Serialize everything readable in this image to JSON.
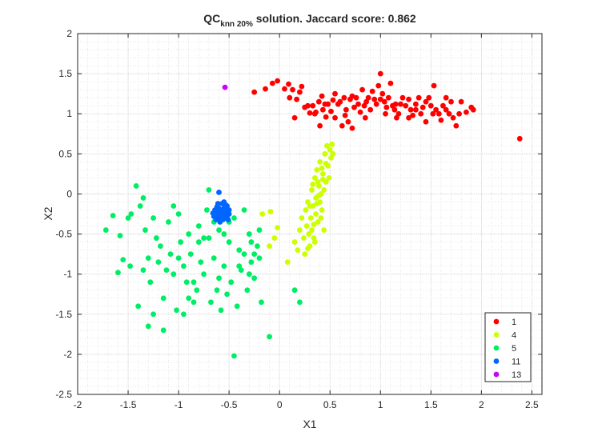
{
  "chart_data": {
    "type": "scatter",
    "title": {
      "main": "QC",
      "subscript": "knn 20%",
      "rest": " solution. Jaccard score: 0.862"
    },
    "xlabel": "X1",
    "ylabel": "X2",
    "xlim": [
      -2,
      2.6
    ],
    "ylim": [
      -2.5,
      2
    ],
    "xticks": [
      -2,
      -1.5,
      -1,
      -0.5,
      0,
      0.5,
      1,
      1.5,
      2,
      2.5
    ],
    "xtick_labels": [
      "-2",
      "-1.5",
      "-1",
      "-0.5",
      "0",
      "0.5",
      "1",
      "1.5",
      "2",
      "2.5"
    ],
    "yticks": [
      -2.5,
      -2,
      -1.5,
      -1,
      -0.5,
      0,
      0.5,
      1,
      1.5,
      2
    ],
    "ytick_labels": [
      "-2.5",
      "-2",
      "-1.5",
      "-1",
      "-0.5",
      "0",
      "0.5",
      "1",
      "1.5",
      "2"
    ],
    "grid": true,
    "minor_grid": true,
    "legend_position": "bottom-right",
    "series": [
      {
        "name": "1",
        "color": "#ff0000",
        "points": [
          [
            -0.25,
            1.27
          ],
          [
            -0.14,
            1.31
          ],
          [
            -0.07,
            1.38
          ],
          [
            -0.02,
            1.41
          ],
          [
            0.05,
            1.31
          ],
          [
            0.09,
            1.37
          ],
          [
            0.13,
            1.3
          ],
          [
            0.17,
            1.18
          ],
          [
            0.2,
            1.27
          ],
          [
            0.1,
            1.2
          ],
          [
            0.22,
            1.34
          ],
          [
            0.25,
            1.08
          ],
          [
            0.3,
            1.01
          ],
          [
            0.33,
            1.1
          ],
          [
            0.36,
            1.02
          ],
          [
            0.39,
            1.15
          ],
          [
            0.42,
            1.22
          ],
          [
            0.43,
            1.05
          ],
          [
            0.46,
            0.96
          ],
          [
            0.48,
            1.12
          ],
          [
            0.51,
            1.03
          ],
          [
            0.53,
            1.17
          ],
          [
            0.55,
            1.25
          ],
          [
            0.58,
            1.12
          ],
          [
            0.6,
            1.15
          ],
          [
            0.62,
            0.85
          ],
          [
            0.64,
            1.2
          ],
          [
            0.66,
            1.05
          ],
          [
            0.68,
            0.9
          ],
          [
            0.7,
            1.18
          ],
          [
            0.72,
            1.22
          ],
          [
            0.74,
            1.08
          ],
          [
            0.76,
            1.2
          ],
          [
            0.78,
            1.12
          ],
          [
            0.8,
            1.02
          ],
          [
            0.82,
            1.3
          ],
          [
            0.84,
            1.1
          ],
          [
            0.86,
            1.15
          ],
          [
            0.88,
            1.2
          ],
          [
            0.9,
            1.05
          ],
          [
            0.92,
            1.28
          ],
          [
            0.94,
            1.18
          ],
          [
            0.96,
            1.12
          ],
          [
            0.98,
            1.35
          ],
          [
            1.0,
            1.5
          ],
          [
            1.02,
            1.25
          ],
          [
            1.04,
            1.15
          ],
          [
            1.06,
            1.08
          ],
          [
            1.08,
            1.2
          ],
          [
            1.1,
            1.38
          ],
          [
            1.12,
            1.1
          ],
          [
            1.14,
            1.05
          ],
          [
            1.16,
            0.95
          ],
          [
            1.18,
            1.0
          ],
          [
            1.2,
            1.12
          ],
          [
            1.22,
            1.2
          ],
          [
            1.25,
            1.1
          ],
          [
            1.28,
            1.18
          ],
          [
            1.3,
            1.05
          ],
          [
            1.32,
            0.98
          ],
          [
            1.35,
            1.12
          ],
          [
            1.38,
            1.2
          ],
          [
            1.4,
            1.0
          ],
          [
            1.42,
            1.08
          ],
          [
            1.45,
            1.15
          ],
          [
            1.48,
            1.2
          ],
          [
            1.5,
            1.1
          ],
          [
            1.52,
            1.0
          ],
          [
            1.55,
            1.05
          ],
          [
            1.58,
            1.0
          ],
          [
            1.6,
            0.92
          ],
          [
            1.62,
            1.1
          ],
          [
            1.65,
            1.05
          ],
          [
            1.68,
            1.0
          ],
          [
            1.7,
            1.15
          ],
          [
            1.72,
            0.95
          ],
          [
            1.75,
            0.85
          ],
          [
            1.78,
            1.0
          ],
          [
            1.8,
            1.15
          ],
          [
            1.85,
            1.02
          ],
          [
            1.9,
            1.08
          ],
          [
            1.92,
            1.05
          ],
          [
            0.4,
            0.85
          ],
          [
            0.72,
            0.82
          ],
          [
            1.0,
            1.18
          ],
          [
            1.28,
            0.95
          ],
          [
            1.45,
            0.9
          ],
          [
            1.53,
            1.35
          ],
          [
            2.38,
            0.69
          ],
          [
            0.15,
            0.95
          ],
          [
            0.55,
            0.95
          ],
          [
            0.35,
            1.0
          ],
          [
            0.85,
            0.95
          ],
          [
            1.15,
            1.12
          ],
          [
            0.65,
            0.98
          ],
          [
            1.35,
            1.05
          ],
          [
            1.65,
            1.2
          ],
          [
            0.45,
            1.12
          ],
          [
            0.28,
            1.1
          ],
          [
            1.05,
            1.0
          ]
        ]
      },
      {
        "name": "4",
        "color": "#ccff00",
        "points": [
          [
            -0.17,
            -0.25
          ],
          [
            -0.09,
            -0.22
          ],
          [
            -0.02,
            -0.42
          ],
          [
            -0.1,
            -0.65
          ],
          [
            -0.05,
            -0.55
          ],
          [
            0.08,
            -0.85
          ],
          [
            0.15,
            -0.6
          ],
          [
            0.18,
            -0.7
          ],
          [
            0.2,
            -0.45
          ],
          [
            0.22,
            -0.3
          ],
          [
            0.24,
            -0.55
          ],
          [
            0.25,
            -0.75
          ],
          [
            0.26,
            -0.2
          ],
          [
            0.27,
            -0.4
          ],
          [
            0.28,
            -0.1
          ],
          [
            0.29,
            -0.5
          ],
          [
            0.3,
            -0.65
          ],
          [
            0.31,
            -0.3
          ],
          [
            0.32,
            0.05
          ],
          [
            0.33,
            -0.15
          ],
          [
            0.34,
            -0.55
          ],
          [
            0.35,
            0.2
          ],
          [
            0.36,
            -0.05
          ],
          [
            0.37,
            0.3
          ],
          [
            0.38,
            -0.35
          ],
          [
            0.39,
            0.1
          ],
          [
            0.4,
            0.4
          ],
          [
            0.41,
            0.0
          ],
          [
            0.42,
            -0.2
          ],
          [
            0.43,
            0.25
          ],
          [
            0.44,
            -0.45
          ],
          [
            0.45,
            0.5
          ],
          [
            0.46,
            0.15
          ],
          [
            0.47,
            0.6
          ],
          [
            0.48,
            0.35
          ],
          [
            0.49,
            0.2
          ],
          [
            0.5,
            0.55
          ],
          [
            0.51,
            0.45
          ],
          [
            0.52,
            0.62
          ],
          [
            0.53,
            0.5
          ],
          [
            0.38,
            0.15
          ],
          [
            0.4,
            -0.1
          ],
          [
            0.36,
            -0.25
          ],
          [
            0.32,
            -0.45
          ],
          [
            0.42,
            0.32
          ],
          [
            0.44,
            0.05
          ],
          [
            0.3,
            -0.15
          ],
          [
            0.28,
            -0.68
          ],
          [
            0.35,
            -0.6
          ],
          [
            0.33,
            0.12
          ],
          [
            0.46,
            0.38
          ],
          [
            0.41,
            -0.3
          ],
          [
            0.37,
            -0.12
          ],
          [
            0.43,
            0.18
          ],
          [
            0.39,
            -0.02
          ],
          [
            0.34,
            -0.38
          ]
        ]
      },
      {
        "name": "5",
        "color": "#00ee66",
        "points": [
          [
            -1.72,
            -0.45
          ],
          [
            -1.65,
            -0.27
          ],
          [
            -1.58,
            -0.52
          ],
          [
            -1.55,
            -0.82
          ],
          [
            -1.6,
            -0.98
          ],
          [
            -1.48,
            -0.9
          ],
          [
            -1.47,
            -0.25
          ],
          [
            -1.42,
            0.1
          ],
          [
            -1.38,
            -0.15
          ],
          [
            -1.35,
            -0.05
          ],
          [
            -1.33,
            -0.45
          ],
          [
            -1.3,
            -0.8
          ],
          [
            -1.28,
            -1.1
          ],
          [
            -1.25,
            -0.3
          ],
          [
            -1.22,
            -0.55
          ],
          [
            -1.2,
            -0.85
          ],
          [
            -1.18,
            -0.65
          ],
          [
            -1.15,
            -1.3
          ],
          [
            -1.12,
            -0.95
          ],
          [
            -1.1,
            -0.35
          ],
          [
            -1.08,
            -0.75
          ],
          [
            -1.05,
            -1.0
          ],
          [
            -1.02,
            -1.45
          ],
          [
            -1.0,
            -0.25
          ],
          [
            -0.98,
            -0.6
          ],
          [
            -0.95,
            -0.9
          ],
          [
            -0.92,
            -1.1
          ],
          [
            -0.9,
            -0.5
          ],
          [
            -0.88,
            -0.75
          ],
          [
            -0.85,
            -1.35
          ],
          [
            -0.82,
            -1.2
          ],
          [
            -0.8,
            -0.4
          ],
          [
            -0.78,
            -0.85
          ],
          [
            -0.75,
            -1.0
          ],
          [
            -0.72,
            -0.2
          ],
          [
            -0.7,
            -0.55
          ],
          [
            -0.68,
            -1.35
          ],
          [
            -0.65,
            -0.8
          ],
          [
            -0.62,
            -1.2
          ],
          [
            -0.6,
            -0.45
          ],
          [
            -0.58,
            -1.45
          ],
          [
            -0.55,
            -0.9
          ],
          [
            -0.52,
            -1.25
          ],
          [
            -0.5,
            -0.6
          ],
          [
            -0.48,
            -1.1
          ],
          [
            -0.45,
            -0.3
          ],
          [
            -0.42,
            -1.4
          ],
          [
            -0.4,
            -0.7
          ],
          [
            -0.38,
            -0.95
          ],
          [
            -0.35,
            -0.2
          ],
          [
            -0.32,
            -1.2
          ],
          [
            -0.3,
            -0.5
          ],
          [
            -0.28,
            -0.85
          ],
          [
            -0.25,
            -1.05
          ],
          [
            -0.22,
            -0.65
          ],
          [
            -0.2,
            -0.45
          ],
          [
            -0.18,
            -1.35
          ],
          [
            -0.1,
            -1.78
          ],
          [
            -0.45,
            -2.02
          ],
          [
            -1.3,
            -1.65
          ],
          [
            -1.15,
            -1.7
          ],
          [
            -0.95,
            -1.5
          ],
          [
            -1.4,
            -1.4
          ],
          [
            -0.7,
            0.05
          ],
          [
            -0.85,
            -1.1
          ],
          [
            -1.05,
            -0.15
          ],
          [
            -0.6,
            -1.05
          ],
          [
            -0.35,
            -0.75
          ],
          [
            -1.25,
            -1.5
          ],
          [
            -0.75,
            -0.55
          ],
          [
            -0.55,
            -0.5
          ],
          [
            -1.5,
            -0.3
          ],
          [
            -1.35,
            -0.95
          ],
          [
            -0.9,
            -1.3
          ],
          [
            -0.3,
            -1.0
          ],
          [
            -0.4,
            -0.9
          ],
          [
            -0.25,
            -0.75
          ],
          [
            0.15,
            -1.2
          ],
          [
            0.2,
            -1.35
          ],
          [
            -0.5,
            -0.35
          ],
          [
            -0.65,
            -0.35
          ],
          [
            -0.8,
            -0.6
          ],
          [
            -1.0,
            -0.8
          ],
          [
            -0.2,
            -0.8
          ],
          [
            -0.28,
            -0.6
          ]
        ]
      },
      {
        "name": "11",
        "color": "#0066ff",
        "points": [
          [
            -0.64,
            -0.2
          ],
          [
            -0.62,
            -0.25
          ],
          [
            -0.6,
            -0.18
          ],
          [
            -0.58,
            -0.28
          ],
          [
            -0.56,
            -0.22
          ],
          [
            -0.54,
            -0.3
          ],
          [
            -0.52,
            -0.15
          ],
          [
            -0.5,
            -0.25
          ],
          [
            -0.65,
            -0.28
          ],
          [
            -0.63,
            -0.32
          ],
          [
            -0.61,
            -0.12
          ],
          [
            -0.59,
            -0.35
          ],
          [
            -0.57,
            -0.12
          ],
          [
            -0.55,
            -0.18
          ],
          [
            -0.53,
            -0.24
          ],
          [
            -0.51,
            -0.32
          ],
          [
            -0.62,
            -0.16
          ],
          [
            -0.6,
            -0.26
          ],
          [
            -0.58,
            -0.2
          ],
          [
            -0.56,
            -0.32
          ],
          [
            -0.54,
            -0.2
          ],
          [
            -0.52,
            -0.28
          ],
          [
            -0.59,
            -0.22
          ],
          [
            -0.57,
            -0.26
          ],
          [
            -0.6,
            0.02
          ],
          [
            -0.55,
            -0.1
          ],
          [
            -0.66,
            -0.24
          ],
          [
            -0.5,
            -0.2
          ],
          [
            -0.61,
            -0.3
          ],
          [
            -0.53,
            -0.14
          ]
        ]
      },
      {
        "name": "13",
        "color": "#cc00ff",
        "points": [
          [
            -0.54,
            1.33
          ]
        ]
      }
    ]
  }
}
